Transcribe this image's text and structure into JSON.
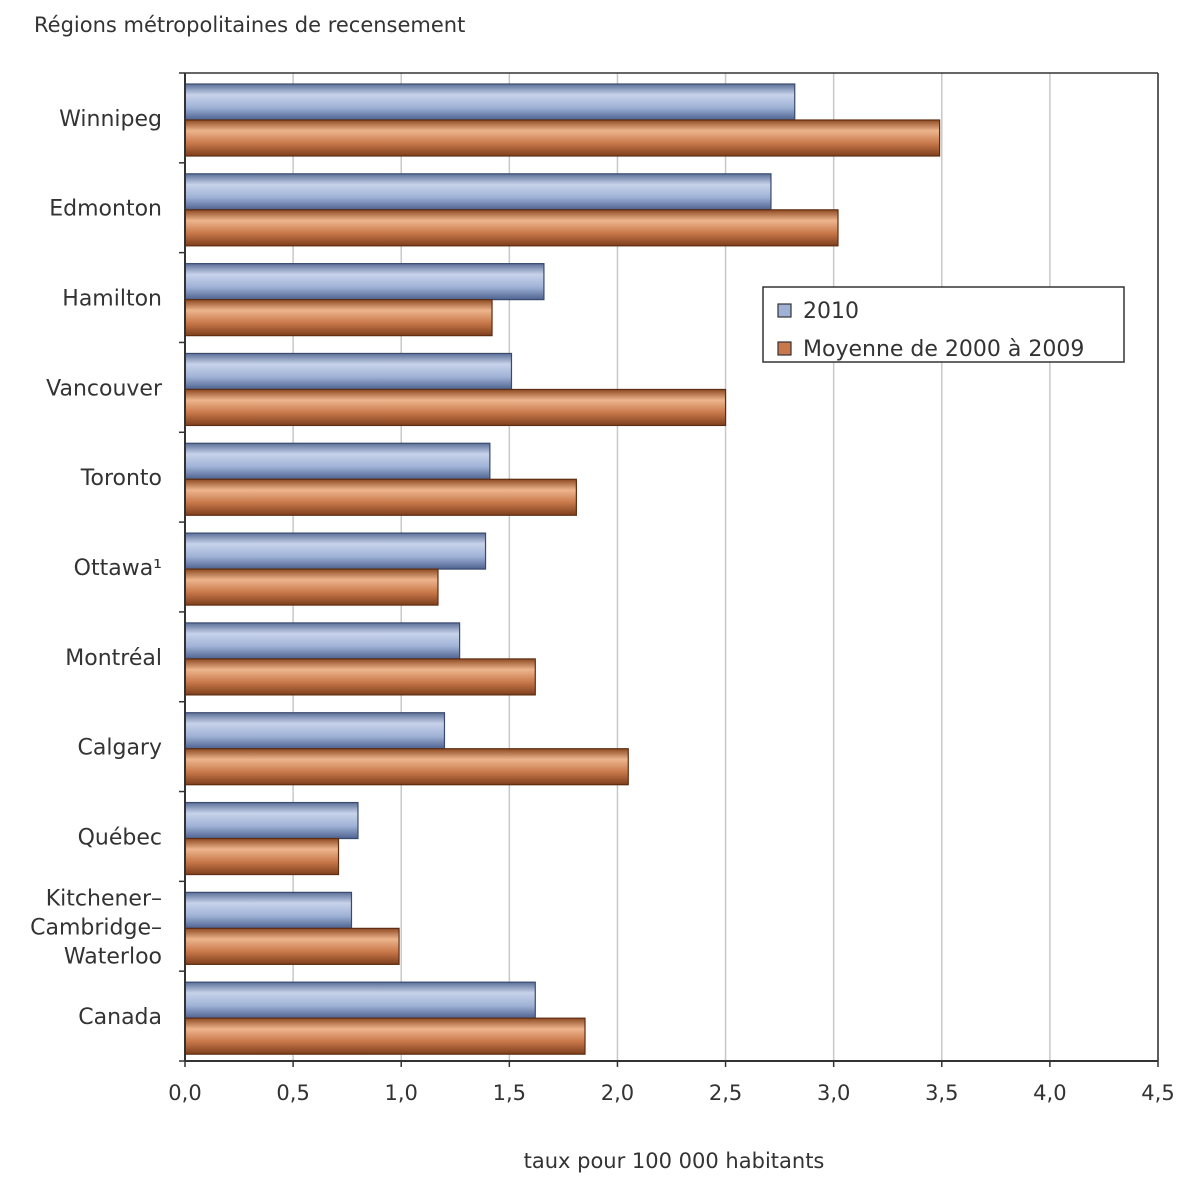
{
  "chart_data": {
    "type": "bar",
    "orientation": "horizontal",
    "title": "Régions métropolitaines de recensement",
    "xlabel": "taux pour 100 000 habitants",
    "categories": [
      [
        "Winnipeg"
      ],
      [
        "Edmonton"
      ],
      [
        "Hamilton"
      ],
      [
        "Vancouver"
      ],
      [
        "Toronto"
      ],
      [
        "Ottawa¹"
      ],
      [
        "Montréal"
      ],
      [
        "Calgary"
      ],
      [
        "Québec"
      ],
      [
        "Kitchener–",
        "Cambridge–",
        "Waterloo"
      ],
      [
        "Canada"
      ]
    ],
    "series": [
      {
        "name": "2010",
        "values": [
          2.82,
          2.71,
          1.66,
          1.51,
          1.41,
          1.39,
          1.27,
          1.2,
          0.8,
          0.77,
          1.62
        ],
        "color": "#9fb2d6"
      },
      {
        "name": "Moyenne de 2000 à 2009",
        "values": [
          3.49,
          3.02,
          1.42,
          2.5,
          1.81,
          1.17,
          1.62,
          2.05,
          0.71,
          0.99,
          1.85
        ],
        "color": "#c8784a"
      }
    ],
    "xlim": [
      0,
      4.5
    ],
    "xticks": [
      "0,0",
      "0,5",
      "1,0",
      "1,5",
      "2,0",
      "2,5",
      "3,0",
      "3,5",
      "4,0",
      "4,5"
    ],
    "grid": true,
    "legend_position": "upper-right"
  }
}
